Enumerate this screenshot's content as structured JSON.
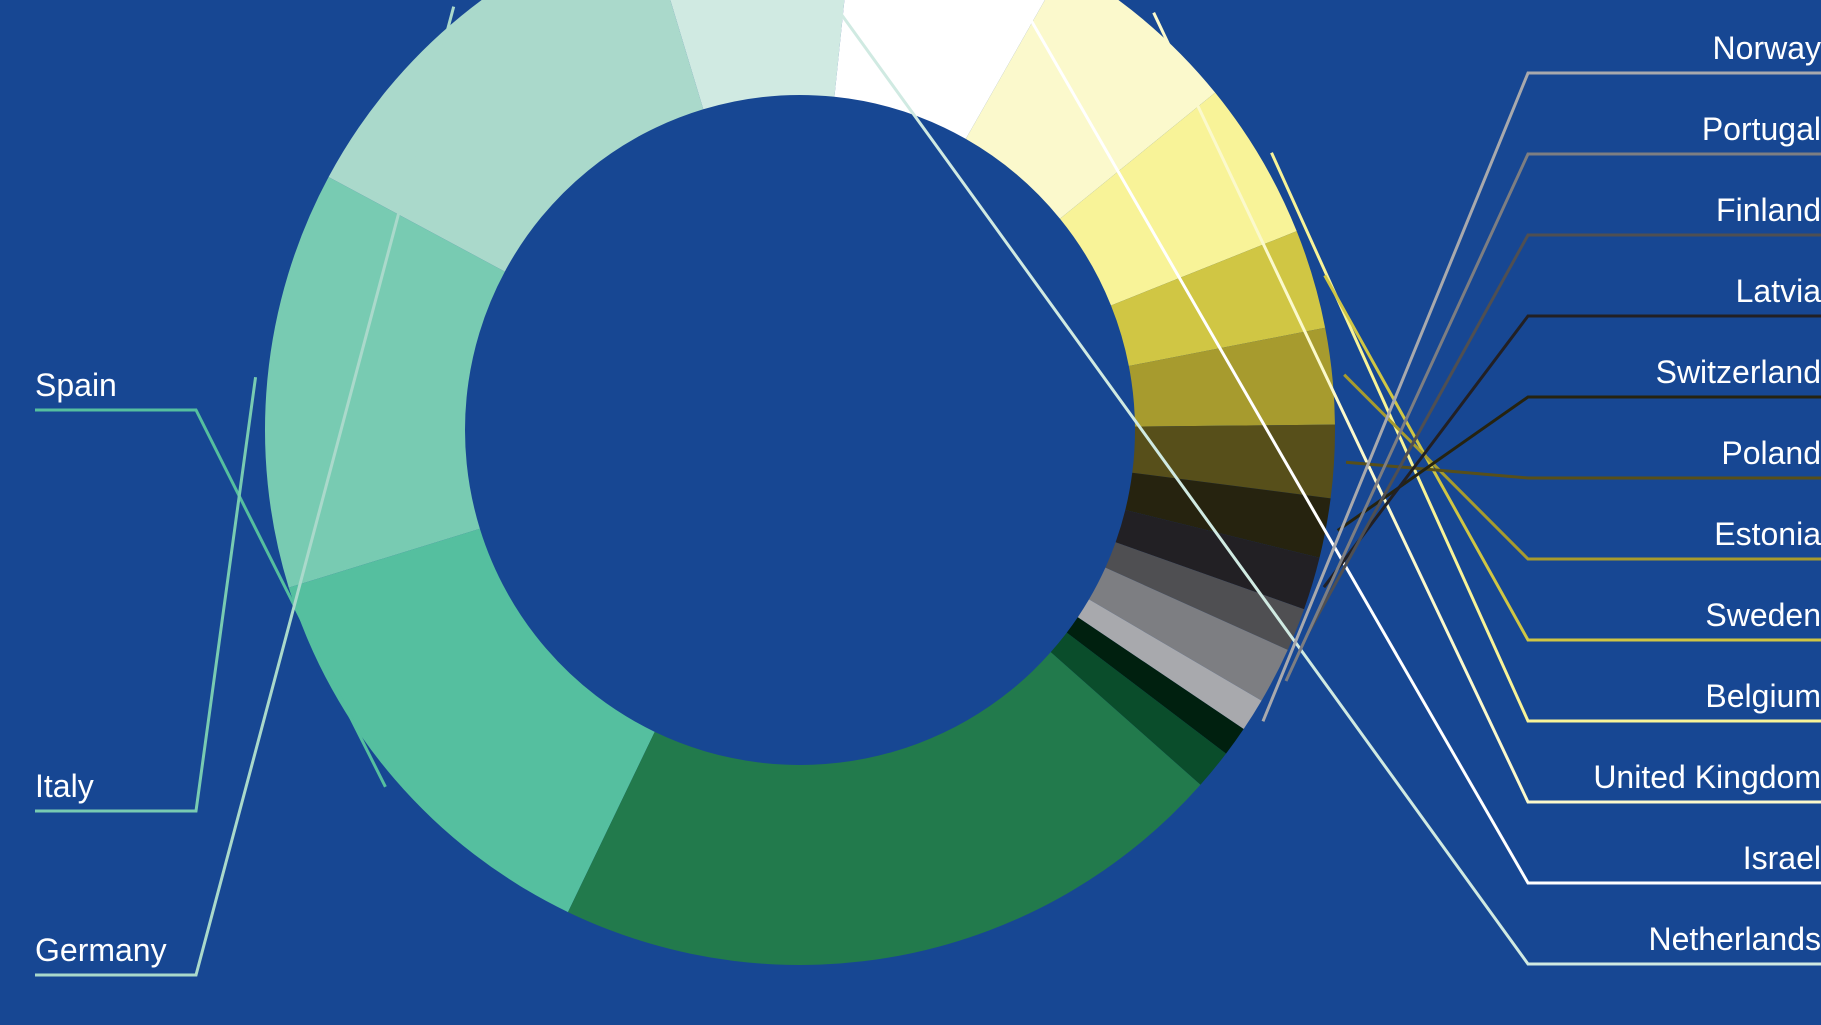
{
  "chart_data": {
    "type": "donut",
    "background": "#174793",
    "total_label": "",
    "slices": [
      {
        "name": "Spain",
        "value": 13.1,
        "color": "#55bf9f",
        "side": "left"
      },
      {
        "name": "Italy",
        "value": 12.6,
        "color": "#78cbb2",
        "side": "left"
      },
      {
        "name": "Germany",
        "value": 12.5,
        "color": "#aad9cb",
        "side": "left"
      },
      {
        "name": "Netherlands",
        "value": 6.3,
        "color": "#d0eae2",
        "side": "right"
      },
      {
        "name": "Israel",
        "value": 6.6,
        "color": "#ffffff",
        "side": "right"
      },
      {
        "name": "United Kingdom",
        "value": 5.9,
        "color": "#fbf9cc",
        "side": "right"
      },
      {
        "name": "Belgium",
        "value": 4.8,
        "color": "#f8f398",
        "side": "right"
      },
      {
        "name": "Sweden",
        "value": 3.0,
        "color": "#d0c644",
        "side": "right"
      },
      {
        "name": "Estonia",
        "value": 2.9,
        "color": "#a79b2e",
        "side": "right"
      },
      {
        "name": "Poland",
        "value": 2.2,
        "color": "#574f1a",
        "side": "right"
      },
      {
        "name": "Switzerland",
        "value": 1.8,
        "color": "#26230f",
        "side": "right"
      },
      {
        "name": "Latvia",
        "value": 1.6,
        "color": "#222024",
        "side": "right"
      },
      {
        "name": "Finland",
        "value": 1.3,
        "color": "#4f4f52",
        "side": "right"
      },
      {
        "name": "Portugal",
        "value": 1.7,
        "color": "#7d7e82",
        "side": "right"
      },
      {
        "name": "Norway",
        "value": 1.0,
        "color": "#a8a9ad",
        "side": "right"
      },
      {
        "name": "",
        "value": 0.9,
        "color": "#00200f",
        "side": "none"
      },
      {
        "name": "",
        "value": 1.2,
        "color": "#0a4d2b",
        "side": "none"
      },
      {
        "name": "",
        "value": 20.6,
        "color": "#227a4c",
        "side": "none"
      }
    ]
  }
}
